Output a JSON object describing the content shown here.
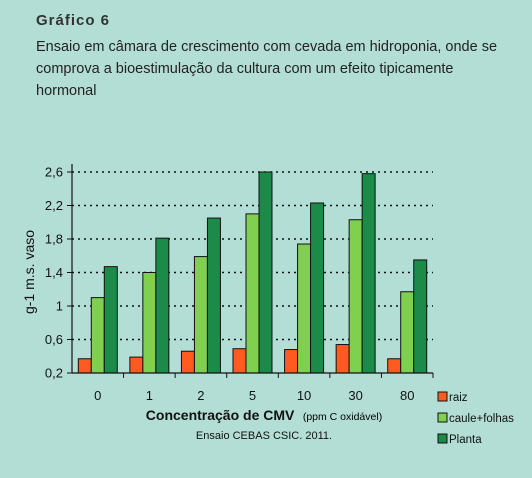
{
  "header": {
    "heading": "Gráfico 6",
    "subtitle": "Ensaio em câmara de crescimento com cevada em hidroponia, onde se comprova a bioestimulação da cultura com um efeito tipicamente hormonal"
  },
  "chart_data": {
    "type": "bar",
    "categories": [
      "0",
      "1",
      "2",
      "5",
      "10",
      "30",
      "80"
    ],
    "series": [
      {
        "name": "raiz",
        "color": "#ff5a1f",
        "values": [
          0.37,
          0.39,
          0.46,
          0.49,
          0.48,
          0.54,
          0.37
        ]
      },
      {
        "name": "caule+folhas",
        "color": "#7fd04e",
        "values": [
          1.1,
          1.4,
          1.59,
          2.1,
          1.74,
          2.03,
          1.17
        ]
      },
      {
        "name": "Planta",
        "color": "#1c8a48",
        "values": [
          1.47,
          1.81,
          2.05,
          2.6,
          2.23,
          2.58,
          1.55
        ]
      }
    ],
    "ylim": [
      0.2,
      2.6
    ],
    "yticks": [
      "0,2",
      "0,6",
      "1",
      "1,4",
      "1,8",
      "2,2",
      "2,6"
    ],
    "ylabel": "g-1 m.s. vaso",
    "xlabel_main": "Concentração de CMV",
    "xlabel_unit": "(ppm C oxidável)",
    "note": "Ensaio CEBAS CSIC. 2011.",
    "grid": "horizontal dotted",
    "legend_position": "bottom-right"
  }
}
